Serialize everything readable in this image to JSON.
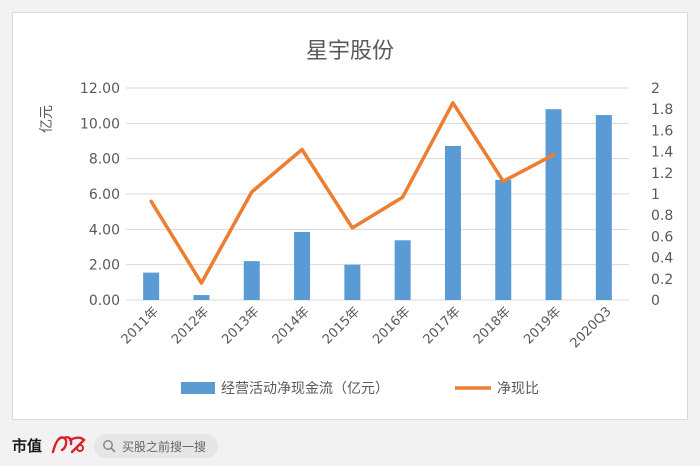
{
  "chart_data": {
    "type": "bar+line",
    "title": "星宇股份",
    "ylabel_left": "亿元",
    "categories": [
      "2011年",
      "2012年",
      "2013年",
      "2014年",
      "2015年",
      "2016年",
      "2017年",
      "2018年",
      "2019年",
      "2020Q3"
    ],
    "series": [
      {
        "name": "经营活动净现金流（亿元）",
        "type": "bar",
        "axis": "left",
        "color": "#5b9bd5",
        "values": [
          1.55,
          0.28,
          2.2,
          3.85,
          2.0,
          3.38,
          8.72,
          6.8,
          10.8,
          10.47
        ]
      },
      {
        "name": "净现比",
        "type": "line",
        "axis": "right",
        "color": "#ed7d31",
        "values": [
          0.93,
          0.16,
          1.02,
          1.42,
          0.68,
          0.97,
          1.86,
          1.12,
          1.37,
          null
        ]
      }
    ],
    "ylim_left": [
      0,
      12
    ],
    "yticks_left": [
      "0.00",
      "2.00",
      "4.00",
      "6.00",
      "8.00",
      "10.00",
      "12.00"
    ],
    "ylim_right": [
      0,
      2
    ],
    "yticks_right": [
      "0",
      "0.2",
      "0.4",
      "0.6",
      "0.8",
      "1",
      "1.2",
      "1.4",
      "1.6",
      "1.8",
      "2"
    ],
    "grid": true,
    "legend_position": "bottom"
  },
  "footer": {
    "brand": "市值",
    "search_placeholder": "买股之前搜一搜",
    "search_icon": "search-icon"
  }
}
